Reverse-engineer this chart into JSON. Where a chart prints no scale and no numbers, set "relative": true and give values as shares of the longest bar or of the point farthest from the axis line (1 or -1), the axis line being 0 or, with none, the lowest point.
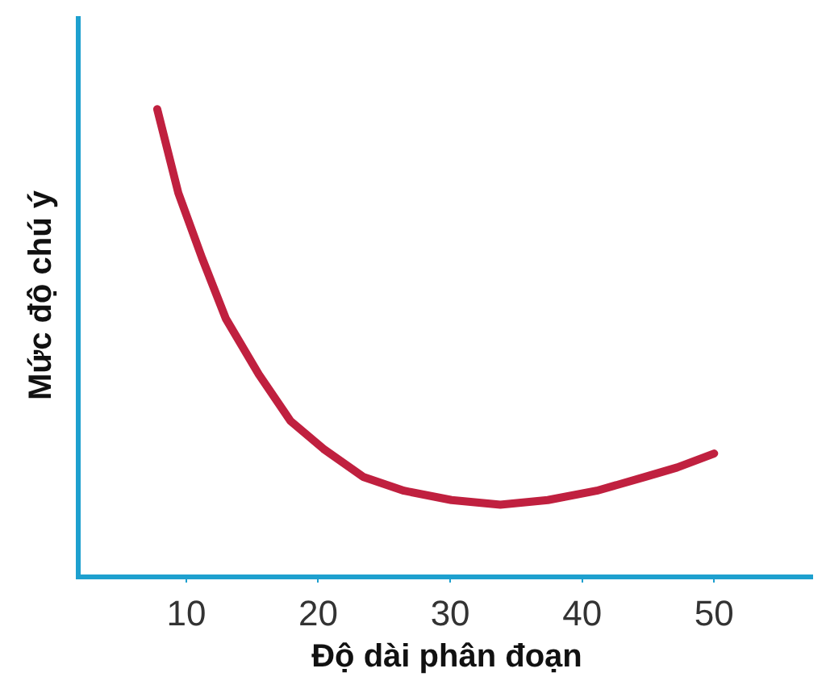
{
  "chart_data": {
    "type": "line",
    "relative": true,
    "xlabel": "Độ dài phân đoạn",
    "ylabel": "Mức độ chú ý",
    "x": [
      7.8,
      9.4,
      11.2,
      13.0,
      15.5,
      17.9,
      20.4,
      23.4,
      26.5,
      30.1,
      33.8,
      37.4,
      41.1,
      44.8,
      47.2,
      50
    ],
    "series": [
      {
        "color": "#c0203f",
        "values": [
          1,
          0.82,
          0.68,
          0.55,
          0.43,
          0.33,
          0.27,
          0.21,
          0.18,
          0.16,
          0.15,
          0.16,
          0.18,
          0.21,
          0.23,
          0.26
        ]
      }
    ],
    "xlim": [
      2,
      57.5
    ],
    "xticks": [
      10,
      20,
      30,
      40,
      50
    ],
    "legend": false,
    "marker": "none",
    "line_style": "solid"
  }
}
